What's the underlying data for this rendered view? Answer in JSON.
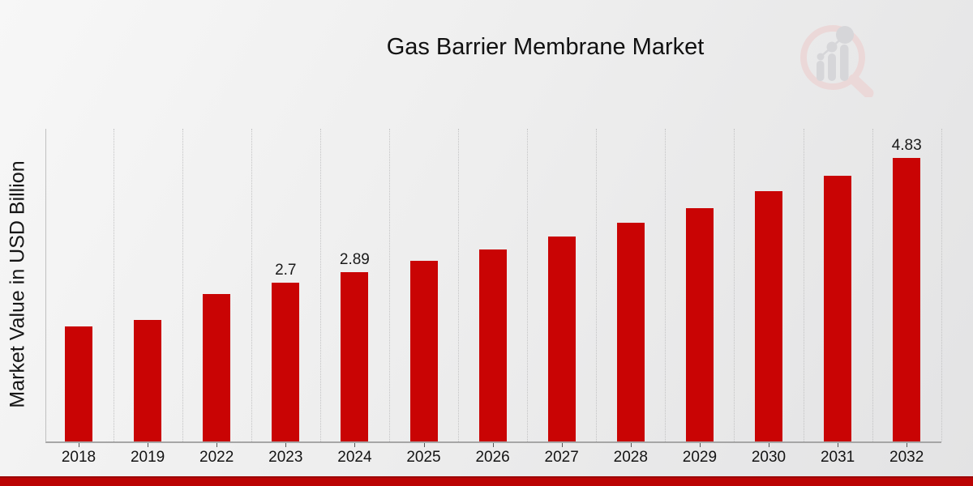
{
  "page": {
    "title": "Gas Barrier Membrane Market",
    "footer_accent_color": "#bb0404",
    "background_color": "#ececec"
  },
  "logo": {
    "name": "magnifier-bar-chart-watermark",
    "ring_color": "#ecd6d6",
    "bars_color": "#d3d3d7"
  },
  "chart_data": {
    "type": "bar",
    "title": "Gas Barrier Membrane Market",
    "xlabel": "",
    "ylabel": "Market Value in USD Billion",
    "categories": [
      "2018",
      "2019",
      "2022",
      "2023",
      "2024",
      "2025",
      "2026",
      "2027",
      "2028",
      "2029",
      "2030",
      "2031",
      "2032"
    ],
    "values": [
      1.96,
      2.07,
      2.52,
      2.7,
      2.89,
      3.08,
      3.27,
      3.49,
      3.73,
      3.98,
      4.26,
      4.53,
      4.83
    ],
    "data_labels": {
      "2023": "2.7",
      "2024": "2.89",
      "2032": "4.83"
    },
    "bar_color": "#c90404",
    "ylim": [
      0,
      5.33
    ],
    "grid": "vertical-dotted",
    "gridline_color": "#c3c3c4",
    "legend": "none"
  }
}
